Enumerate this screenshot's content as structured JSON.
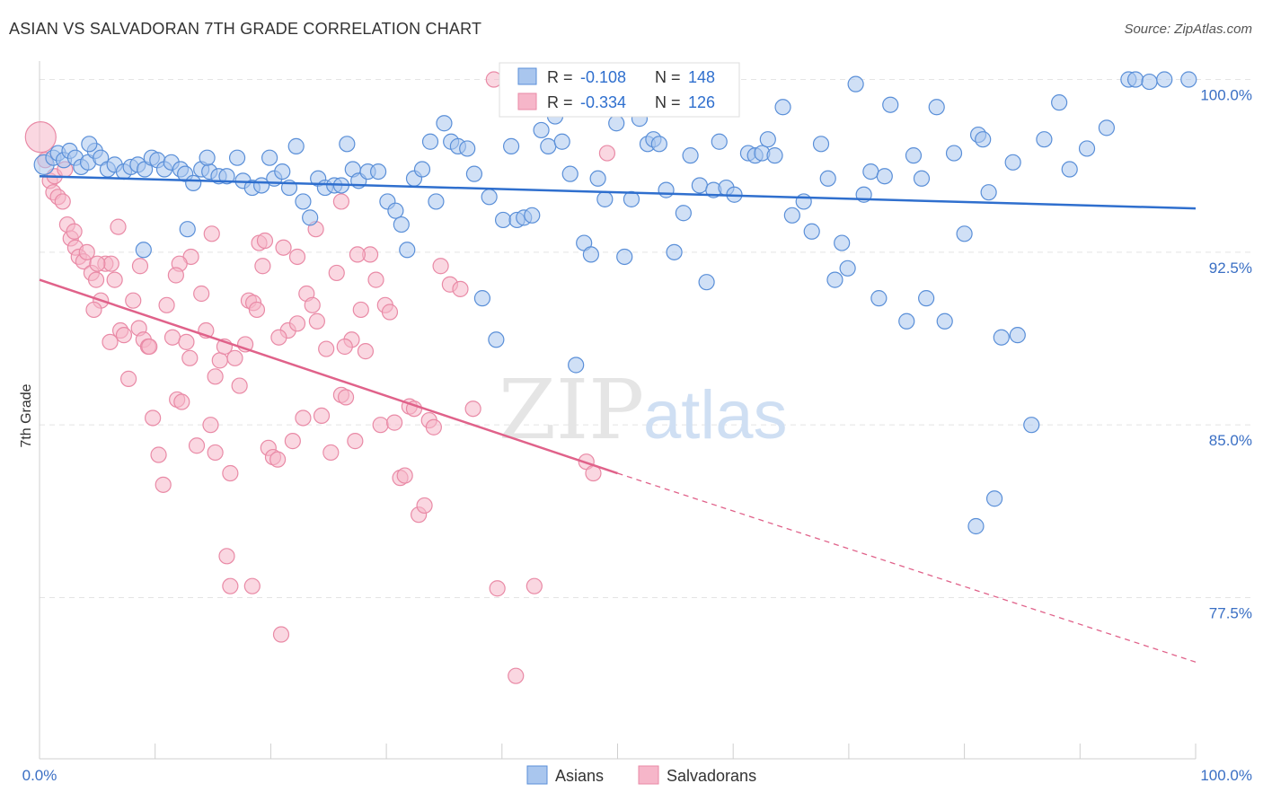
{
  "title": "ASIAN VS SALVADORAN 7TH GRADE CORRELATION CHART",
  "source": "Source: ZipAtlas.com",
  "watermark": {
    "zip": "ZIP",
    "atlas": "atlas"
  },
  "colors": {
    "asian_fill": "#a9c6ee",
    "asian_stroke": "#5a8fd8",
    "asian_line": "#2f6fce",
    "salv_fill": "#f6b6c9",
    "salv_stroke": "#e98aa6",
    "salv_line": "#e0628a",
    "tick_text": "#3a6fc4",
    "grid": "#e4e4e4"
  },
  "chart_data": {
    "type": "scatter",
    "title": "ASIAN VS SALVADORAN 7TH GRADE CORRELATION CHART",
    "xlabel": "",
    "ylabel": "7th Grade",
    "xlim": [
      0,
      100
    ],
    "ylim": [
      70.5,
      100.8
    ],
    "x_tick_labels": [
      "0.0%",
      "100.0%"
    ],
    "y_ticks": [
      {
        "value": 100.0,
        "label": "100.0%"
      },
      {
        "value": 92.5,
        "label": "92.5%"
      },
      {
        "value": 85.0,
        "label": "85.0%"
      },
      {
        "value": 77.5,
        "label": "77.5%"
      }
    ],
    "legend_position": "top-center",
    "stats": [
      {
        "r_label": "R = ",
        "r": "-0.108",
        "n_label": "N = ",
        "n": "148"
      },
      {
        "r_label": "R = ",
        "r": "-0.334",
        "n_label": "N = ",
        "n": "126"
      }
    ],
    "series": [
      {
        "name": "Asians",
        "trend": {
          "x": [
            0,
            100
          ],
          "y": [
            95.8,
            94.4
          ]
        },
        "points": [
          [
            0.4,
            96.3
          ],
          [
            1.2,
            96.6
          ],
          [
            1.6,
            96.8
          ],
          [
            2.1,
            96.5
          ],
          [
            2.6,
            96.9
          ],
          [
            3.1,
            96.6
          ],
          [
            3.6,
            96.2
          ],
          [
            4.2,
            96.4
          ],
          [
            4.8,
            96.9
          ],
          [
            5.3,
            96.6
          ],
          [
            5.9,
            96.1
          ],
          [
            6.5,
            96.3
          ],
          [
            7.3,
            96.0
          ],
          [
            7.9,
            96.2
          ],
          [
            8.5,
            96.3
          ],
          [
            9.1,
            96.1
          ],
          [
            9.7,
            96.6
          ],
          [
            10.2,
            96.5
          ],
          [
            10.8,
            96.1
          ],
          [
            11.4,
            96.4
          ],
          [
            12.2,
            96.1
          ],
          [
            12.6,
            95.9
          ],
          [
            13.3,
            95.5
          ],
          [
            14.0,
            96.1
          ],
          [
            14.7,
            96.0
          ],
          [
            15.5,
            95.8
          ],
          [
            16.2,
            95.8
          ],
          [
            17.1,
            96.6
          ],
          [
            17.6,
            95.6
          ],
          [
            18.4,
            95.3
          ],
          [
            19.2,
            95.4
          ],
          [
            19.9,
            96.6
          ],
          [
            20.3,
            95.7
          ],
          [
            21.0,
            96.0
          ],
          [
            21.6,
            95.3
          ],
          [
            22.2,
            97.1
          ],
          [
            22.8,
            94.7
          ],
          [
            23.4,
            94.0
          ],
          [
            24.1,
            95.7
          ],
          [
            24.7,
            95.3
          ],
          [
            25.5,
            95.4
          ],
          [
            26.1,
            95.4
          ],
          [
            26.6,
            97.2
          ],
          [
            27.1,
            96.1
          ],
          [
            27.6,
            95.6
          ],
          [
            28.4,
            96.0
          ],
          [
            29.3,
            96.0
          ],
          [
            30.1,
            94.7
          ],
          [
            30.8,
            94.3
          ],
          [
            31.3,
            93.7
          ],
          [
            31.8,
            92.6
          ],
          [
            32.4,
            95.7
          ],
          [
            33.1,
            96.1
          ],
          [
            33.8,
            97.3
          ],
          [
            34.3,
            94.7
          ],
          [
            35.0,
            98.1
          ],
          [
            35.6,
            97.3
          ],
          [
            36.2,
            97.1
          ],
          [
            37.0,
            97.0
          ],
          [
            37.6,
            95.9
          ],
          [
            38.3,
            90.5
          ],
          [
            38.9,
            94.9
          ],
          [
            39.5,
            88.7
          ],
          [
            40.1,
            93.9
          ],
          [
            40.8,
            97.1
          ],
          [
            41.3,
            93.9
          ],
          [
            41.9,
            94.0
          ],
          [
            42.6,
            94.1
          ],
          [
            43.4,
            97.8
          ],
          [
            44.0,
            97.1
          ],
          [
            44.6,
            98.4
          ],
          [
            45.2,
            97.3
          ],
          [
            45.9,
            95.9
          ],
          [
            46.4,
            87.6
          ],
          [
            47.1,
            92.9
          ],
          [
            47.7,
            92.4
          ],
          [
            48.3,
            95.7
          ],
          [
            48.9,
            94.8
          ],
          [
            49.4,
            99.0
          ],
          [
            49.9,
            98.1
          ],
          [
            50.6,
            92.3
          ],
          [
            51.2,
            94.8
          ],
          [
            51.9,
            98.3
          ],
          [
            52.6,
            97.2
          ],
          [
            53.1,
            97.4
          ],
          [
            53.6,
            97.2
          ],
          [
            54.2,
            95.2
          ],
          [
            54.9,
            92.5
          ],
          [
            55.7,
            94.2
          ],
          [
            56.3,
            96.7
          ],
          [
            57.1,
            95.4
          ],
          [
            57.7,
            91.2
          ],
          [
            58.3,
            95.2
          ],
          [
            58.8,
            97.3
          ],
          [
            59.4,
            95.3
          ],
          [
            60.1,
            95.0
          ],
          [
            61.3,
            96.8
          ],
          [
            61.9,
            96.7
          ],
          [
            62.5,
            96.8
          ],
          [
            63.0,
            97.4
          ],
          [
            63.6,
            96.7
          ],
          [
            64.3,
            98.8
          ],
          [
            65.1,
            94.1
          ],
          [
            66.1,
            94.7
          ],
          [
            66.8,
            93.4
          ],
          [
            67.6,
            97.2
          ],
          [
            68.2,
            95.7
          ],
          [
            68.8,
            91.3
          ],
          [
            69.4,
            92.9
          ],
          [
            69.9,
            91.8
          ],
          [
            70.6,
            99.8
          ],
          [
            71.3,
            95.0
          ],
          [
            71.9,
            96.0
          ],
          [
            72.6,
            90.5
          ],
          [
            73.1,
            95.8
          ],
          [
            73.6,
            98.9
          ],
          [
            75.0,
            89.5
          ],
          [
            75.6,
            96.7
          ],
          [
            76.3,
            95.7
          ],
          [
            76.7,
            90.5
          ],
          [
            77.6,
            98.8
          ],
          [
            78.3,
            89.5
          ],
          [
            79.1,
            96.8
          ],
          [
            80.0,
            93.3
          ],
          [
            81.2,
            97.6
          ],
          [
            81.6,
            97.4
          ],
          [
            82.1,
            95.1
          ],
          [
            83.2,
            88.8
          ],
          [
            84.2,
            96.4
          ],
          [
            84.6,
            88.9
          ],
          [
            85.8,
            85.0
          ],
          [
            86.9,
            97.4
          ],
          [
            88.2,
            99.0
          ],
          [
            89.1,
            96.1
          ],
          [
            90.6,
            97.0
          ],
          [
            92.3,
            97.9
          ],
          [
            94.2,
            100.0
          ],
          [
            94.8,
            100.0
          ],
          [
            96.0,
            99.9
          ],
          [
            97.3,
            100.0
          ],
          [
            99.4,
            100.0
          ],
          [
            82.6,
            81.8
          ],
          [
            81.0,
            80.6
          ],
          [
            4.3,
            97.2
          ],
          [
            12.8,
            93.5
          ],
          [
            14.5,
            96.6
          ],
          [
            9.0,
            92.6
          ]
        ]
      },
      {
        "name": "Salvadorans",
        "trend": {
          "x": [
            0,
            50
          ],
          "y": [
            91.3,
            82.9
          ]
        },
        "trend_dashed": {
          "x": [
            50,
            100
          ],
          "y": [
            82.9,
            74.7
          ]
        },
        "points": [
          [
            0.1,
            97.5
          ],
          [
            0.5,
            96.5
          ],
          [
            0.9,
            95.6
          ],
          [
            1.2,
            95.1
          ],
          [
            1.6,
            94.9
          ],
          [
            2.0,
            94.7
          ],
          [
            2.4,
            93.7
          ],
          [
            2.7,
            93.1
          ],
          [
            3.1,
            92.7
          ],
          [
            3.4,
            92.3
          ],
          [
            3.8,
            92.1
          ],
          [
            4.1,
            92.5
          ],
          [
            4.5,
            91.6
          ],
          [
            4.9,
            91.3
          ],
          [
            5.3,
            90.4
          ],
          [
            5.7,
            92.0
          ],
          [
            6.2,
            92.0
          ],
          [
            6.5,
            91.3
          ],
          [
            7.0,
            89.1
          ],
          [
            7.3,
            88.9
          ],
          [
            7.7,
            87.0
          ],
          [
            8.1,
            90.4
          ],
          [
            8.6,
            89.2
          ],
          [
            9.0,
            88.7
          ],
          [
            9.4,
            88.4
          ],
          [
            9.8,
            85.3
          ],
          [
            10.3,
            83.7
          ],
          [
            10.7,
            82.4
          ],
          [
            11.0,
            90.2
          ],
          [
            11.5,
            88.8
          ],
          [
            11.9,
            86.1
          ],
          [
            12.3,
            86.0
          ],
          [
            12.7,
            88.6
          ],
          [
            13.1,
            92.3
          ],
          [
            13.6,
            84.1
          ],
          [
            14.0,
            90.7
          ],
          [
            14.4,
            89.1
          ],
          [
            14.8,
            85.0
          ],
          [
            15.2,
            83.8
          ],
          [
            15.6,
            87.8
          ],
          [
            16.0,
            88.4
          ],
          [
            16.5,
            82.9
          ],
          [
            16.9,
            87.9
          ],
          [
            17.3,
            86.7
          ],
          [
            17.8,
            88.5
          ],
          [
            18.1,
            90.4
          ],
          [
            18.5,
            90.3
          ],
          [
            19.0,
            92.9
          ],
          [
            19.3,
            91.9
          ],
          [
            19.8,
            84.0
          ],
          [
            20.2,
            83.6
          ],
          [
            20.6,
            83.5
          ],
          [
            21.1,
            92.7
          ],
          [
            21.5,
            89.1
          ],
          [
            21.9,
            84.3
          ],
          [
            22.3,
            92.3
          ],
          [
            22.8,
            85.3
          ],
          [
            23.1,
            90.7
          ],
          [
            23.6,
            90.2
          ],
          [
            24.0,
            89.5
          ],
          [
            24.4,
            85.4
          ],
          [
            24.8,
            88.3
          ],
          [
            25.2,
            83.8
          ],
          [
            25.7,
            91.6
          ],
          [
            26.1,
            86.3
          ],
          [
            26.5,
            86.2
          ],
          [
            27.0,
            88.7
          ],
          [
            27.3,
            84.3
          ],
          [
            27.8,
            90.0
          ],
          [
            28.2,
            88.2
          ],
          [
            28.6,
            92.4
          ],
          [
            29.1,
            91.3
          ],
          [
            29.5,
            85.0
          ],
          [
            29.9,
            90.2
          ],
          [
            30.3,
            89.9
          ],
          [
            30.7,
            85.1
          ],
          [
            31.2,
            82.7
          ],
          [
            31.6,
            82.8
          ],
          [
            32.0,
            85.8
          ],
          [
            32.4,
            85.7
          ],
          [
            32.8,
            81.1
          ],
          [
            33.3,
            81.5
          ],
          [
            33.7,
            85.2
          ],
          [
            34.1,
            84.9
          ],
          [
            34.7,
            91.9
          ],
          [
            35.5,
            91.1
          ],
          [
            36.4,
            90.9
          ],
          [
            37.5,
            85.7
          ],
          [
            39.6,
            77.9
          ],
          [
            41.2,
            74.1
          ],
          [
            42.8,
            78.0
          ],
          [
            47.3,
            83.4
          ],
          [
            47.9,
            82.9
          ],
          [
            49.1,
            96.8
          ],
          [
            39.3,
            100.0
          ],
          [
            57.7,
            100.0
          ],
          [
            16.2,
            79.3
          ],
          [
            18.4,
            78.0
          ],
          [
            16.5,
            78.0
          ],
          [
            20.9,
            75.9
          ],
          [
            3.0,
            93.4
          ],
          [
            5.0,
            92.0
          ],
          [
            6.8,
            93.6
          ],
          [
            8.7,
            91.9
          ],
          [
            12.1,
            92.0
          ],
          [
            14.9,
            93.3
          ],
          [
            19.5,
            93.0
          ],
          [
            23.9,
            93.5
          ],
          [
            27.5,
            92.4
          ],
          [
            9.5,
            88.4
          ],
          [
            13.0,
            87.9
          ],
          [
            15.2,
            87.1
          ],
          [
            18.8,
            90.0
          ],
          [
            22.3,
            89.4
          ],
          [
            26.4,
            88.4
          ],
          [
            6.1,
            88.6
          ],
          [
            4.7,
            90.0
          ],
          [
            11.8,
            91.5
          ],
          [
            20.7,
            88.8
          ],
          [
            26.1,
            94.7
          ],
          [
            1.3,
            95.8
          ],
          [
            2.2,
            96.1
          ]
        ]
      }
    ]
  }
}
